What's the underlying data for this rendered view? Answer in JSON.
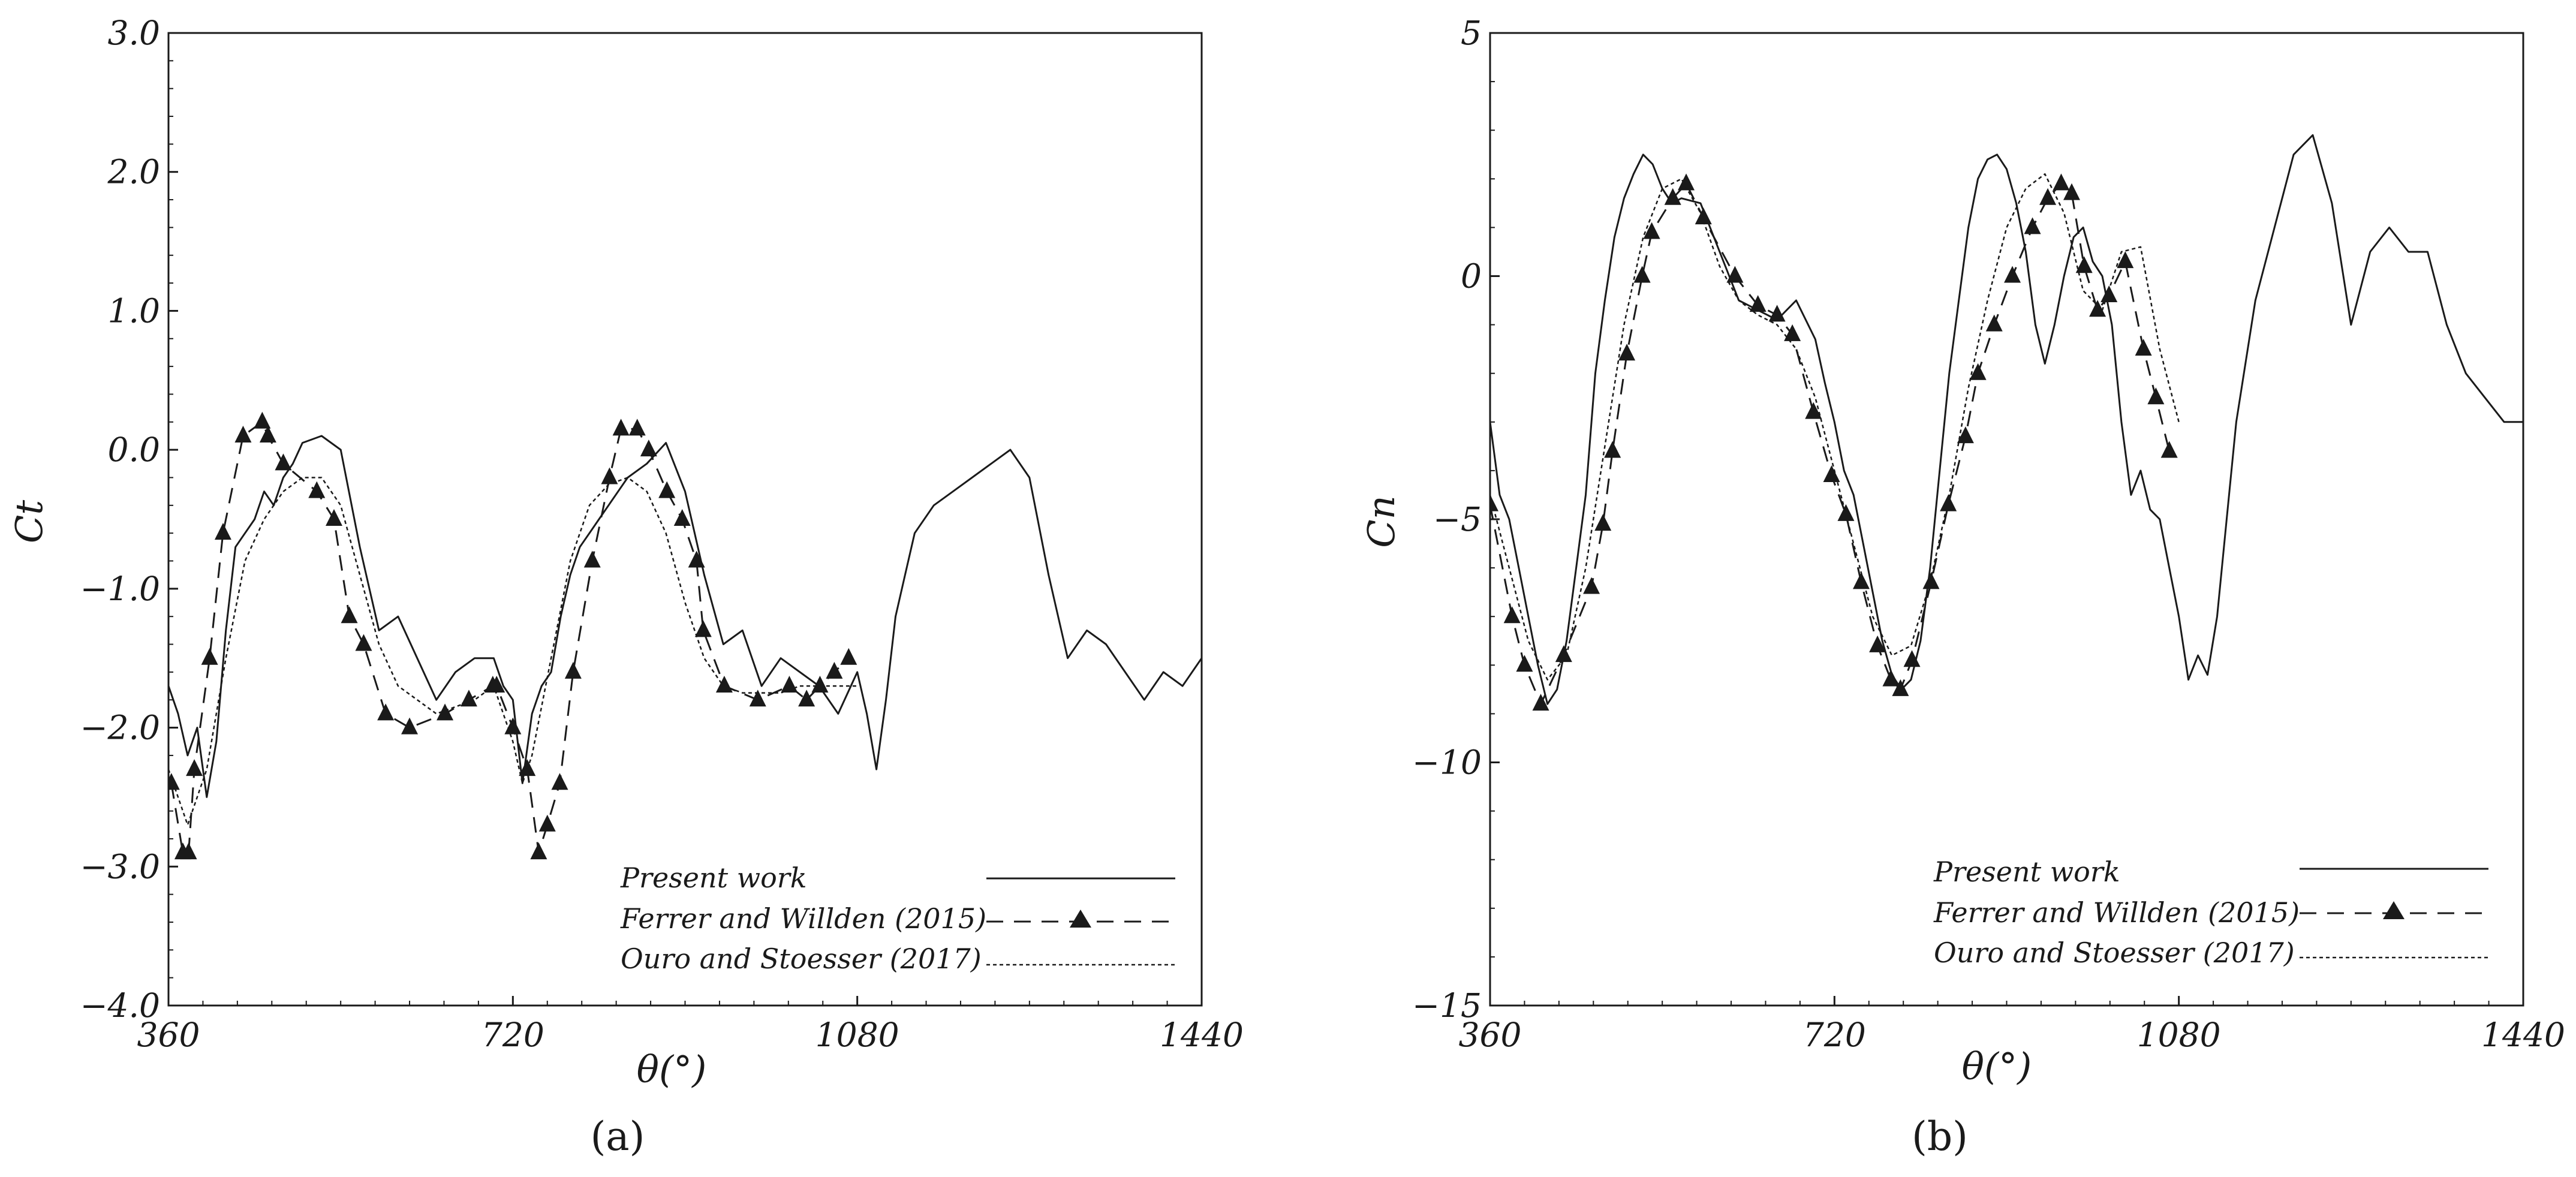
{
  "colors": {
    "line": "#1a1a1a",
    "background": "#ffffff"
  },
  "chart_data": [
    {
      "type": "line",
      "panel_label": "(a)",
      "xlabel": "θ(°)",
      "ylabel": "Ct",
      "xlim": [
        360,
        1440
      ],
      "ylim": [
        -4.0,
        3.0
      ],
      "xticks": [
        "360",
        "720",
        "1080",
        "1440"
      ],
      "yticks": [
        "−4.0",
        "−3.0",
        "−2.0",
        "−1.0",
        "0.0",
        "1.0",
        "2.0",
        "3.0"
      ],
      "grid": false,
      "legend_position": "bottom-right",
      "series": [
        {
          "name": "Present work",
          "style": "solid",
          "x": [
            360,
            370,
            380,
            390,
            400,
            410,
            420,
            430,
            440,
            450,
            460,
            470,
            480,
            490,
            500,
            520,
            540,
            560,
            580,
            600,
            620,
            640,
            660,
            680,
            700,
            710,
            720,
            730,
            740,
            750,
            760,
            770,
            780,
            790,
            800,
            810,
            820,
            830,
            840,
            860,
            880,
            900,
            920,
            940,
            960,
            980,
            1000,
            1020,
            1040,
            1060,
            1080,
            1090,
            1100,
            1110,
            1120,
            1130,
            1140,
            1160,
            1180,
            1200,
            1220,
            1240,
            1260,
            1280,
            1300,
            1320,
            1340,
            1360,
            1380,
            1400,
            1420,
            1440
          ],
          "y": [
            -1.7,
            -1.9,
            -2.2,
            -2.0,
            -2.5,
            -2.1,
            -1.3,
            -0.7,
            -0.6,
            -0.5,
            -0.3,
            -0.4,
            -0.2,
            -0.1,
            0.05,
            0.1,
            0.0,
            -0.7,
            -1.3,
            -1.2,
            -1.5,
            -1.8,
            -1.6,
            -1.5,
            -1.5,
            -1.7,
            -1.8,
            -2.4,
            -1.9,
            -1.7,
            -1.6,
            -1.2,
            -0.9,
            -0.7,
            -0.6,
            -0.5,
            -0.4,
            -0.3,
            -0.2,
            -0.1,
            0.05,
            -0.3,
            -0.9,
            -1.4,
            -1.3,
            -1.7,
            -1.5,
            -1.6,
            -1.7,
            -1.9,
            -1.6,
            -1.9,
            -2.3,
            -1.8,
            -1.2,
            -0.9,
            -0.6,
            -0.4,
            -0.3,
            -0.2,
            -0.1,
            0.0,
            -0.2,
            -0.9,
            -1.5,
            -1.3,
            -1.4,
            -1.6,
            -1.8,
            -1.6,
            -1.7,
            -1.5
          ]
        },
        {
          "name": "Ferrer and Willden (2015)",
          "style": "dashed-triangle",
          "x": [
            363,
            375,
            381,
            387,
            403,
            417,
            438,
            458,
            464,
            480,
            515,
            533,
            549,
            564,
            587,
            612,
            649,
            674,
            699,
            703,
            720,
            735,
            747,
            756,
            769,
            783,
            803,
            821,
            833,
            850,
            862,
            881,
            897,
            912,
            919,
            941,
            976,
            1009,
            1027,
            1041,
            1056,
            1071
          ],
          "y": [
            -2.4,
            -2.9,
            -2.9,
            -2.3,
            -1.5,
            -0.6,
            0.1,
            0.2,
            0.1,
            -0.1,
            -0.3,
            -0.5,
            -1.2,
            -1.4,
            -1.9,
            -2.0,
            -1.9,
            -1.8,
            -1.7,
            -1.7,
            -2.0,
            -2.3,
            -2.9,
            -2.7,
            -2.4,
            -1.6,
            -0.8,
            -0.2,
            0.15,
            0.15,
            0.0,
            -0.3,
            -0.5,
            -0.8,
            -1.3,
            -1.7,
            -1.8,
            -1.7,
            -1.8,
            -1.7,
            -1.6,
            -1.5
          ]
        },
        {
          "name": "Ouro and Stoesser (2017)",
          "style": "dotted",
          "x": [
            360,
            380,
            400,
            420,
            440,
            460,
            480,
            500,
            520,
            540,
            560,
            580,
            600,
            620,
            640,
            660,
            680,
            700,
            720,
            730,
            740,
            760,
            780,
            800,
            820,
            840,
            860,
            880,
            900,
            920,
            940,
            960,
            980,
            1000,
            1020,
            1040,
            1060,
            1080
          ],
          "y": [
            -2.3,
            -2.7,
            -2.3,
            -1.5,
            -0.8,
            -0.5,
            -0.3,
            -0.2,
            -0.2,
            -0.4,
            -0.9,
            -1.4,
            -1.7,
            -1.8,
            -1.9,
            -1.85,
            -1.8,
            -1.7,
            -2.1,
            -2.4,
            -2.2,
            -1.5,
            -0.8,
            -0.4,
            -0.25,
            -0.2,
            -0.3,
            -0.6,
            -1.1,
            -1.5,
            -1.7,
            -1.75,
            -1.75,
            -1.75,
            -1.7,
            -1.7,
            -1.7,
            -1.7
          ]
        }
      ]
    },
    {
      "type": "line",
      "panel_label": "(b)",
      "xlabel": "θ(°)",
      "ylabel": "Cn",
      "xlim": [
        360,
        1440
      ],
      "ylim": [
        -15,
        5
      ],
      "xticks": [
        "360",
        "720",
        "1080",
        "1440"
      ],
      "yticks": [
        "−15",
        "−10",
        "−5",
        "0",
        "5"
      ],
      "grid": false,
      "legend_position": "bottom-right",
      "series": [
        {
          "name": "Present work",
          "style": "solid",
          "x": [
            360,
            370,
            380,
            390,
            400,
            410,
            420,
            430,
            440,
            450,
            460,
            470,
            480,
            490,
            500,
            510,
            520,
            530,
            540,
            550,
            560,
            580,
            600,
            620,
            640,
            660,
            680,
            700,
            710,
            720,
            730,
            740,
            750,
            760,
            770,
            780,
            790,
            800,
            810,
            820,
            830,
            840,
            850,
            860,
            870,
            880,
            890,
            900,
            910,
            920,
            930,
            940,
            950,
            960,
            970,
            980,
            990,
            1000,
            1010,
            1020,
            1030,
            1040,
            1050,
            1060,
            1070,
            1080,
            1090,
            1100,
            1110,
            1120,
            1130,
            1140,
            1160,
            1180,
            1200,
            1220,
            1240,
            1260,
            1280,
            1300,
            1320,
            1340,
            1360,
            1380,
            1400,
            1420,
            1440
          ],
          "y": [
            -3,
            -4.5,
            -5.0,
            -6.0,
            -7.0,
            -8.0,
            -8.8,
            -8.5,
            -7.5,
            -6.0,
            -4.5,
            -2.0,
            -0.5,
            0.8,
            1.6,
            2.1,
            2.5,
            2.3,
            1.8,
            1.5,
            1.6,
            1.5,
            0.5,
            -0.5,
            -0.7,
            -0.9,
            -0.5,
            -1.3,
            -2.2,
            -3.0,
            -4.0,
            -4.5,
            -5.5,
            -6.5,
            -7.5,
            -8.2,
            -8.5,
            -8.3,
            -7.5,
            -6.0,
            -4.0,
            -2.0,
            -0.5,
            1.0,
            2.0,
            2.4,
            2.5,
            2.2,
            1.5,
            0.5,
            -1.0,
            -1.8,
            -1.0,
            0.0,
            0.8,
            1.0,
            0.3,
            0.0,
            -1.0,
            -3.0,
            -4.5,
            -4.0,
            -4.8,
            -5.0,
            -6.0,
            -7.0,
            -8.3,
            -7.8,
            -8.2,
            -7.0,
            -5.0,
            -3.0,
            -0.5,
            1.0,
            2.5,
            2.9,
            1.5,
            -1.0,
            0.5,
            1.0,
            0.5,
            0.5,
            -1.0,
            -2.0,
            -2.5,
            -3.0,
            -3.0
          ]
        },
        {
          "name": "Ferrer and Willden (2015)",
          "style": "dashed-triangle",
          "x": [
            360,
            383,
            396,
            413,
            437,
            466,
            478,
            488,
            503,
            519,
            529,
            551,
            565,
            583,
            616,
            640,
            660,
            676,
            698,
            717,
            732,
            748,
            765,
            779,
            789,
            801,
            821,
            839,
            857,
            870,
            887,
            906,
            927,
            943,
            957,
            968,
            981,
            995,
            1007,
            1024,
            1043,
            1056,
            1070
          ],
          "y": [
            -4.7,
            -7.0,
            -8.0,
            -8.8,
            -7.8,
            -6.4,
            -5.1,
            -3.6,
            -1.6,
            0.0,
            0.9,
            1.6,
            1.9,
            1.2,
            0.0,
            -0.6,
            -0.8,
            -1.2,
            -2.8,
            -4.1,
            -4.9,
            -6.3,
            -7.6,
            -8.3,
            -8.5,
            -7.9,
            -6.3,
            -4.7,
            -3.3,
            -2.0,
            -1.0,
            0.0,
            1.0,
            1.6,
            1.9,
            1.7,
            0.2,
            -0.7,
            -0.4,
            0.3,
            -1.5,
            -2.5,
            -3.6
          ]
        },
        {
          "name": "Ouro and Stoesser (2017)",
          "style": "dotted",
          "x": [
            360,
            380,
            400,
            420,
            440,
            460,
            480,
            500,
            520,
            540,
            560,
            580,
            600,
            620,
            640,
            660,
            680,
            700,
            720,
            740,
            760,
            780,
            800,
            820,
            840,
            860,
            880,
            900,
            920,
            940,
            960,
            980,
            1000,
            1020,
            1040,
            1060,
            1080
          ],
          "y": [
            -4.5,
            -6.0,
            -7.5,
            -8.3,
            -7.8,
            -6.0,
            -3.5,
            -1.0,
            0.8,
            1.8,
            2.0,
            1.3,
            0.2,
            -0.5,
            -0.8,
            -1.0,
            -1.5,
            -2.5,
            -4.0,
            -5.5,
            -7.0,
            -7.8,
            -7.6,
            -6.3,
            -4.5,
            -2.3,
            -0.5,
            1.0,
            1.8,
            2.1,
            1.3,
            -0.3,
            -0.7,
            0.5,
            0.6,
            -1.5,
            -3.0
          ]
        }
      ]
    }
  ]
}
